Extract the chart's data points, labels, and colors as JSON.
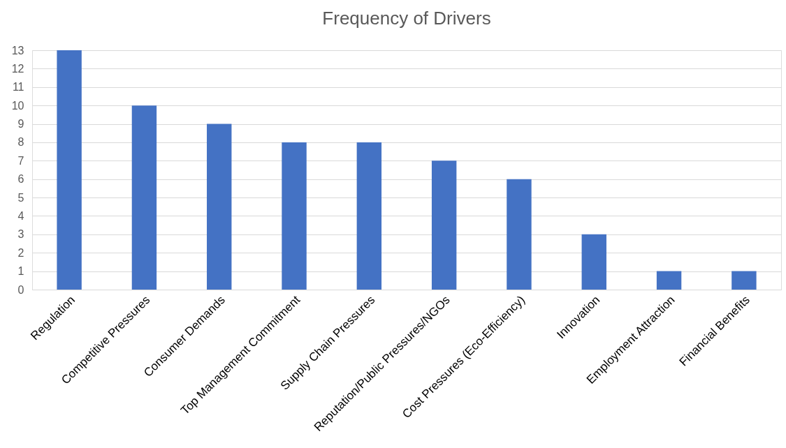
{
  "chart_data": {
    "type": "bar",
    "title": "Frequency of Drivers",
    "categories": [
      "Regulation",
      "Competitive Pressures",
      "Consumer Demands",
      "Top Management Commitment",
      "Supply Chain Pressures",
      "Reputation/Public Pressures/NGOs",
      "Cost Pressures (Eco-Efficiency)",
      "Innovation",
      "Employment Attraction",
      "Financial Benefits"
    ],
    "values": [
      13,
      10,
      9,
      8,
      8,
      7,
      6,
      3,
      1,
      1
    ],
    "color": "#4472c4",
    "ylim": [
      0,
      13
    ],
    "yticks": [
      0,
      1,
      2,
      3,
      4,
      5,
      6,
      7,
      8,
      9,
      10,
      11,
      12,
      13
    ],
    "grid": "y"
  }
}
